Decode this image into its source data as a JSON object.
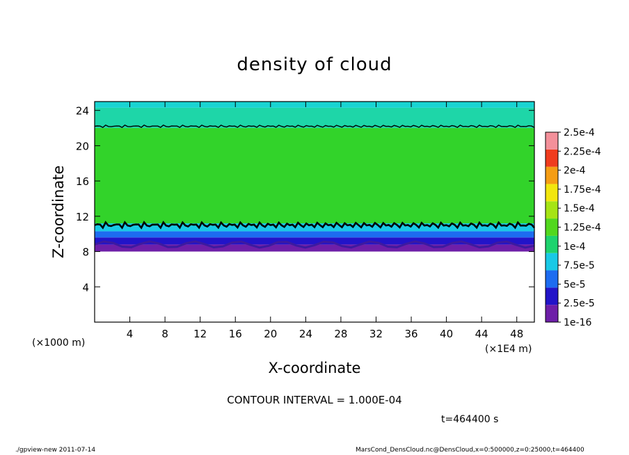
{
  "chart_data": {
    "type": "heatmap",
    "title": "density of cloud",
    "xlabel": "X-coordinate",
    "ylabel": "Z-coordinate",
    "x_unit_label": "(×1E4 m)",
    "y_unit_label": "(×1000 m)",
    "xlim": [
      0,
      50
    ],
    "ylim": [
      0,
      25
    ],
    "x_ticks": [
      4,
      8,
      12,
      16,
      20,
      24,
      28,
      32,
      36,
      40,
      44,
      48
    ],
    "y_ticks": [
      4,
      8,
      12,
      16,
      20,
      24
    ],
    "colorbar": {
      "labels": [
        "1e-16",
        "2.5e-5",
        "5e-5",
        "7.5e-5",
        "1e-4",
        "1.25e-4",
        "1.5e-4",
        "1.75e-4",
        "2e-4",
        "2.25e-4",
        "2.5e-4"
      ],
      "colors": [
        "#6e1fa8",
        "#2214c8",
        "#1d6cf0",
        "#19c9e6",
        "#1ed36e",
        "#52d81e",
        "#a6e414",
        "#f2e60e",
        "#f59d14",
        "#f03c1e",
        "#f3909a"
      ]
    },
    "contour_lines": [
      {
        "z": 22.2,
        "x_range": [
          0,
          50
        ]
      },
      {
        "z": 11.0,
        "x_range": [
          0,
          50
        ]
      }
    ],
    "layers": [
      {
        "z": [
          8.0,
          8.8
        ],
        "level": "1e-16",
        "color": "#6e1fa8"
      },
      {
        "z": [
          8.8,
          9.6
        ],
        "level": "2.5e-5",
        "color": "#2214c8"
      },
      {
        "z": [
          9.6,
          10.3
        ],
        "level": "5e-5",
        "color": "#1d6cf0"
      },
      {
        "z": [
          10.3,
          11.2
        ],
        "level": "7.5e-5",
        "color": "#19c9e6"
      },
      {
        "z": [
          11.2,
          22.0
        ],
        "level": "1e-4",
        "color": "#32d32a"
      },
      {
        "z": [
          22.0,
          24.3
        ],
        "level": "7.5e-5",
        "color": "#1ed6a8"
      },
      {
        "z": [
          24.3,
          25.0
        ],
        "level": "7.5e-5",
        "color": "#19d4d2"
      }
    ]
  },
  "contour_interval": "CONTOUR INTERVAL = 1.000E-04",
  "time_label": "t=464400 s",
  "footer_left": "./gpview-new  2011-07-14",
  "footer_right": "MarsCond_DensCloud.nc@DensCloud,x=0:500000,z=0:25000,t=464400"
}
